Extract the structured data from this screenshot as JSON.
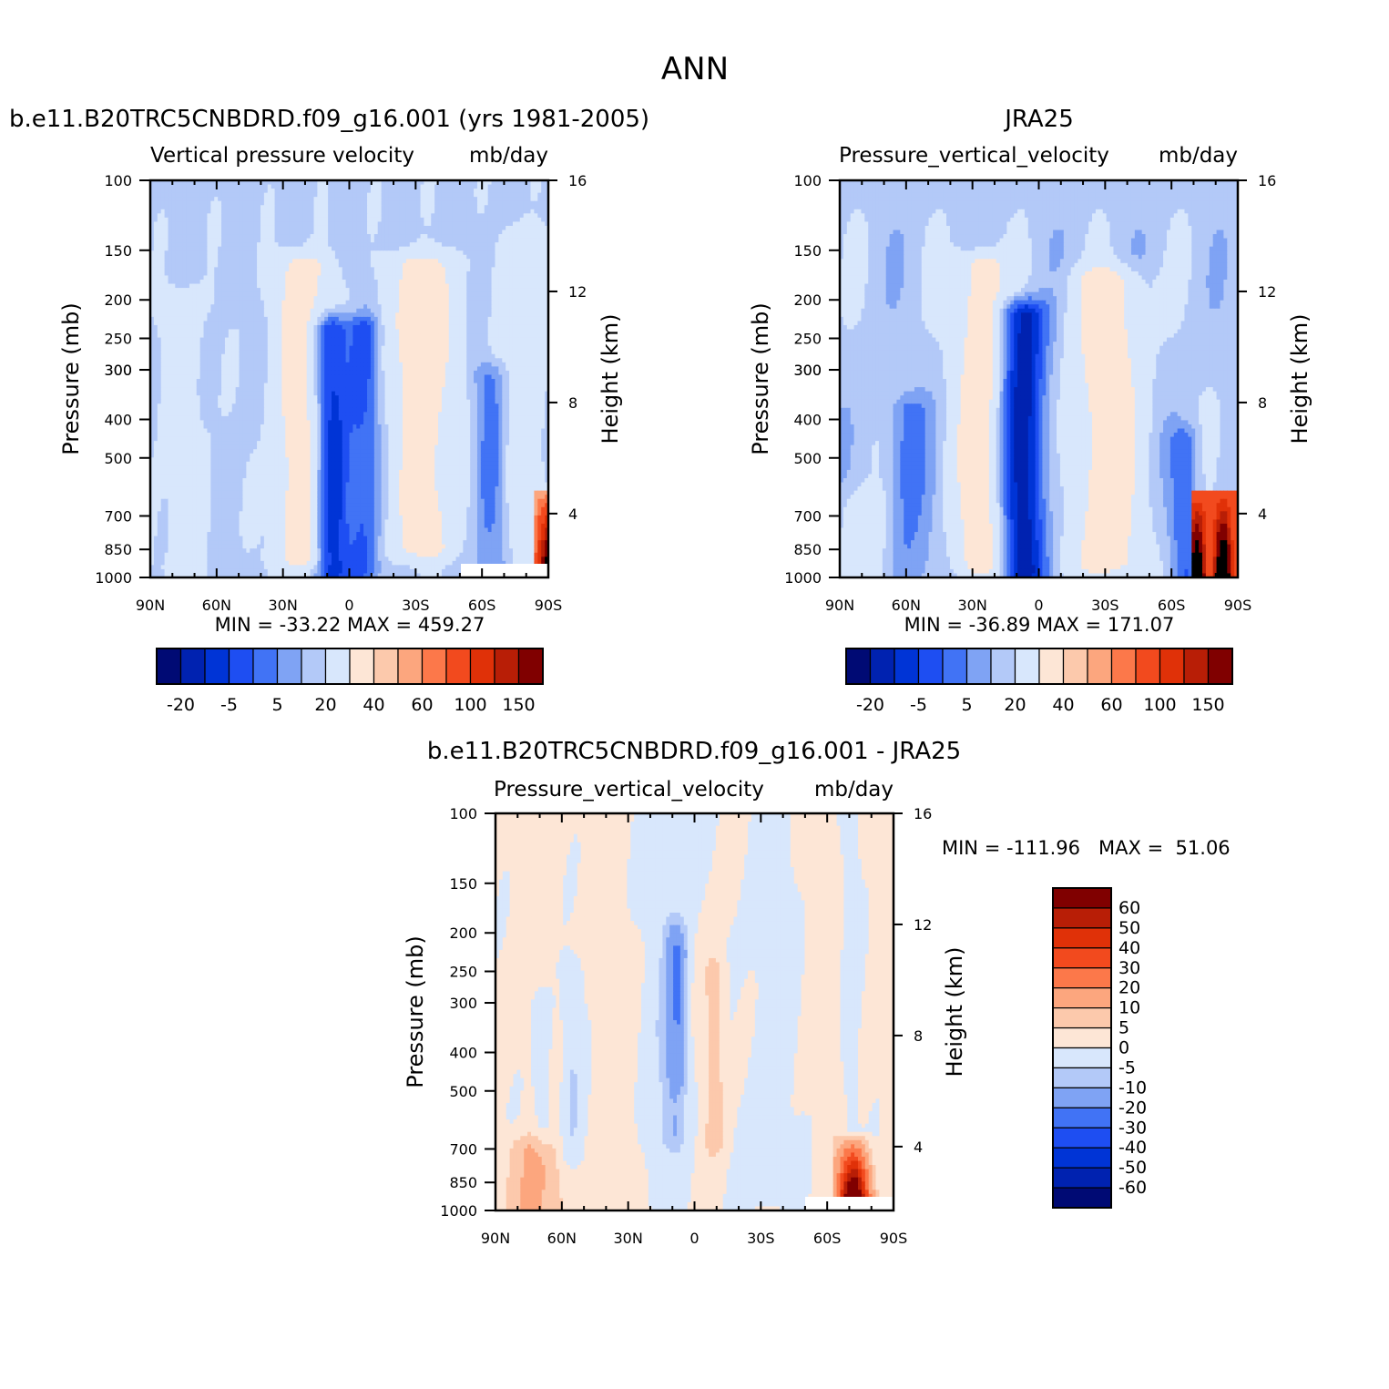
{
  "figure": {
    "title": "ANN"
  },
  "chart_data": [
    {
      "type": "heatmap",
      "title": "b.e11.B20TRC5CNBDRD.f09_g16.001 (yrs 1981-2005)",
      "subtitle": "Vertical pressure velocity",
      "units": "mb/day",
      "xlabel": "",
      "ylabel": "Pressure (mb)",
      "ylabel_right": "Height (km)",
      "x_ticks": [
        "90N",
        "60N",
        "30N",
        "0",
        "30S",
        "60S",
        "90S"
      ],
      "y_ticks": [
        "100",
        "150",
        "200",
        "250",
        "300",
        "300",
        "400",
        "500",
        "700",
        "850",
        "1000"
      ],
      "y_ticks_right": [
        "16",
        "12",
        "8",
        "4"
      ],
      "stats": "MIN = -33.22   MAX = 459.27",
      "min": -33.22,
      "max": 459.27,
      "ylim": [
        1000,
        100
      ],
      "colorbar": {
        "orientation": "horizontal",
        "labels": [
          "-20",
          "-5",
          "5",
          "20",
          "40",
          "60",
          "100",
          "150"
        ]
      }
    },
    {
      "type": "heatmap",
      "title": "JRA25",
      "subtitle": "Pressure_vertical_velocity",
      "units": "mb/day",
      "xlabel": "",
      "ylabel": "Pressure (mb)",
      "ylabel_right": "Height (km)",
      "x_ticks": [
        "90N",
        "60N",
        "30N",
        "0",
        "30S",
        "60S",
        "90S"
      ],
      "y_ticks": [
        "100",
        "150",
        "200",
        "250",
        "300",
        "300",
        "400",
        "500",
        "700",
        "850",
        "1000"
      ],
      "y_ticks_right": [
        "16",
        "12",
        "8",
        "4"
      ],
      "stats": "MIN = -36.89   MAX = 171.07",
      "min": -36.89,
      "max": 171.07,
      "ylim": [
        1000,
        100
      ],
      "colorbar": {
        "orientation": "horizontal",
        "labels": [
          "-20",
          "-5",
          "5",
          "20",
          "40",
          "60",
          "100",
          "150"
        ]
      }
    },
    {
      "type": "heatmap",
      "title": "b.e11.B20TRC5CNBDRD.f09_g16.001 - JRA25",
      "subtitle": "Pressure_vertical_velocity",
      "units": "mb/day",
      "xlabel": "",
      "ylabel": "Pressure (mb)",
      "ylabel_right": "Height (km)",
      "x_ticks": [
        "90N",
        "60N",
        "30N",
        "0",
        "30S",
        "60S",
        "90S"
      ],
      "y_ticks": [
        "100",
        "150",
        "200",
        "250",
        "300",
        "400",
        "500",
        "700",
        "850",
        "1000"
      ],
      "y_ticks_right": [
        "16",
        "12",
        "8",
        "4"
      ],
      "stats": "MIN = -111.96   MAX =  51.06",
      "min": -111.96,
      "max": 51.06,
      "ylim": [
        1000,
        100
      ],
      "colorbar": {
        "orientation": "vertical",
        "labels": [
          "60",
          "50",
          "40",
          "30",
          "20",
          "10",
          "5",
          "0",
          "-5",
          "-10",
          "-20",
          "-30",
          "-40",
          "-50",
          "-60"
        ]
      }
    }
  ],
  "palettes": {
    "abs": [
      "#000a74",
      "#0022b0",
      "#0034d6",
      "#1e4ef2",
      "#4173f5",
      "#7fa3f4",
      "#b3c9f8",
      "#d8e7fc",
      "#fde6d6",
      "#fcc9ac",
      "#fca67e",
      "#fc784a",
      "#f24a1e",
      "#e03108",
      "#b81e06",
      "#800000"
    ],
    "diff": [
      "#800000",
      "#b81e06",
      "#e03108",
      "#f24a1e",
      "#fc784a",
      "#fca67e",
      "#fcc9ac",
      "#fde6d6",
      "#d8e7fc",
      "#b3c9f8",
      "#7fa3f4",
      "#4173f5",
      "#1e4ef2",
      "#0034d6",
      "#0022b0",
      "#000a74"
    ]
  }
}
